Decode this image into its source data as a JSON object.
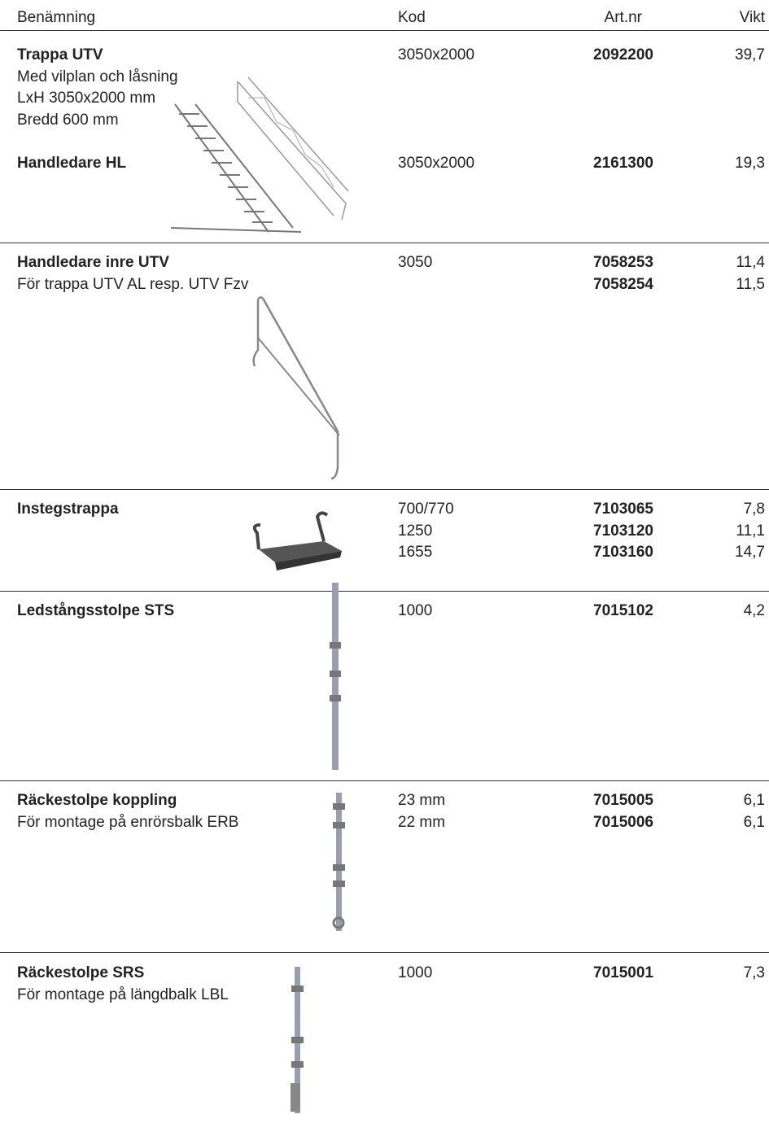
{
  "header": {
    "columns": [
      "Benämning",
      "Kod",
      "Art.nr",
      "Vikt"
    ]
  },
  "sections": [
    {
      "items": [
        {
          "name": "Trappa UTV",
          "description": [
            "Med vilplan och låsning",
            "LxH 3050x2000 mm",
            "Bredd 600 mm"
          ],
          "rows": [
            [
              "3050x2000",
              "2092200",
              "39,7"
            ]
          ]
        },
        {
          "name": "Handledare HL",
          "rows": [
            [
              "3050x2000",
              "2161300",
              "19,3"
            ]
          ]
        }
      ]
    },
    {
      "items": [
        {
          "name": "Handledare inre UTV",
          "description": [
            "För trappa UTV AL resp. UTV Fzv"
          ],
          "rows": [
            [
              "3050",
              "7058253",
              "11,4"
            ],
            [
              "",
              "7058254",
              "11,5"
            ]
          ]
        }
      ]
    },
    {
      "items": [
        {
          "name": "Instegstrappa",
          "rows": [
            [
              "700/770",
              "7103065",
              "7,8"
            ],
            [
              "1250",
              "7103120",
              "11,1"
            ],
            [
              "1655",
              "7103160",
              "14,7"
            ]
          ]
        }
      ]
    },
    {
      "items": [
        {
          "name": "Ledstångsstolpe STS",
          "rows": [
            [
              "1000",
              "7015102",
              "4,2"
            ]
          ]
        }
      ]
    },
    {
      "items": [
        {
          "name": "Räckestolpe koppling",
          "description": [
            "För montage på enrörsbalk ERB"
          ],
          "rows": [
            [
              "23 mm",
              "7015005",
              "6,1"
            ],
            [
              "22 mm",
              "7015006",
              "6,1"
            ]
          ]
        }
      ]
    },
    {
      "items": [
        {
          "name": "Räckestolpe SRS",
          "description": [
            "För montage på längdbalk LBL"
          ],
          "rows": [
            [
              "1000",
              "7015001",
              "7,3"
            ]
          ]
        }
      ]
    }
  ]
}
